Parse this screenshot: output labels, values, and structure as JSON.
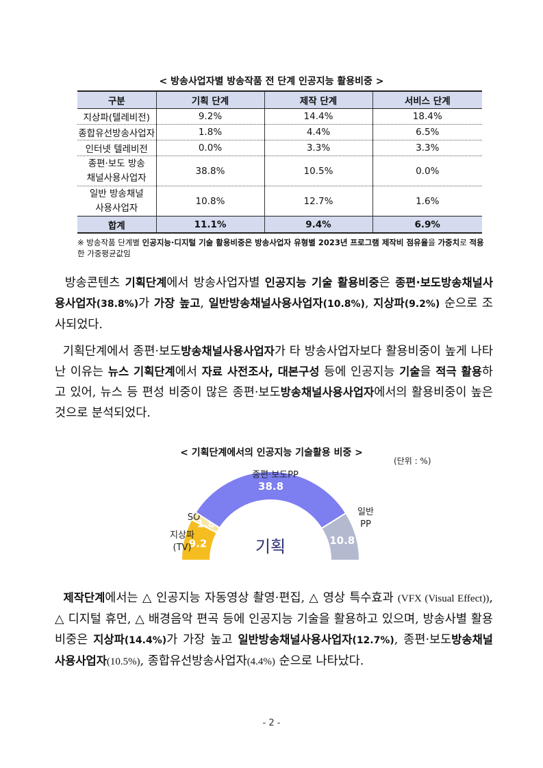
{
  "table": {
    "caption": "< 방송사업자별 방송작품 전 단계 인공지능 활용비중 >",
    "headers": [
      "구분",
      "기획 단계",
      "제작 단계",
      "서비스 단계"
    ],
    "rows": [
      {
        "cat": [
          "지상파(텔레비전)"
        ],
        "plan": "9.2%",
        "prod": "14.4%",
        "serv": "18.4%"
      },
      {
        "cat": [
          "종합유선방송사업자"
        ],
        "plan": "1.8%",
        "prod": "4.4%",
        "serv": "6.5%"
      },
      {
        "cat": [
          "인터넷 텔레비전"
        ],
        "plan": "0.0%",
        "prod": "3.3%",
        "serv": "3.3%"
      },
      {
        "cat": [
          "종편·보도 방송",
          "채널사용사업자"
        ],
        "plan": "38.8%",
        "prod": "10.5%",
        "serv": "0.0%"
      },
      {
        "cat": [
          "일반 방송채널",
          "사용사업자"
        ],
        "plan": "10.8%",
        "prod": "12.7%",
        "serv": "1.6%"
      }
    ],
    "total": {
      "cat": "합계",
      "plan": "11.1%",
      "prod": "9.4%",
      "serv": "6.9%"
    }
  },
  "note": {
    "prefix": "※ 방송작품 단계별 ",
    "bold1": "인공지능·디지털 기술 활용비중은 방송사업자 유형별 2023년 프로그램 제작비 점유율",
    "mid1": "을 ",
    "bold2": "가중치",
    "mid2": "로 ",
    "bold3": "적용",
    "suffix": "한 가중평균값임"
  },
  "para1": {
    "t1": "방송콘텐츠 ",
    "b1": "기획단계",
    "t2": "에서 방송사업자별 ",
    "b2": "인공지능 기술 활용비중",
    "t3": "은 ",
    "b3": "종편·보도방송채널사용사업자",
    "n1": "(38.8%)",
    "t4": "가 ",
    "b4": "가장 높고",
    "t5": ", ",
    "b5": "일반방송채널사용사업자",
    "n2": "(10.8%)",
    "t6": ", ",
    "b6": "지상파",
    "n3": "(9.2%)",
    "t7": " 순으로 조사되었다."
  },
  "para2": {
    "t1": "기획단계에서 종편·보도",
    "b1": "방송채널사용사업자",
    "t2": "가 타 방송사업자보다 활용비중이 높게 나타난 이유는 ",
    "b2": "뉴스 기획단계",
    "t3": "에서 ",
    "b3": "자료 사전조사, 대본구성",
    "t4": " 등에 인공지능 ",
    "b4": "기술",
    "t5": "을 ",
    "b5": "적극 활용",
    "t6": "하고 있어, 뉴스 등 편성 비중이 많은 종편·보도",
    "b6": "방송채널사용사업자",
    "t7": "에서의 활용비중이 높은 것으로 분석되었다."
  },
  "chart_caption": "< 기획단계에서의 인공지능 기술활용 비중 >",
  "chart_unit": "(단위 : %)",
  "chart_data": {
    "type": "pie",
    "title": "< 기획단계에서의 인공지능 기술활용 비중 >",
    "unit": "(단위 : %)",
    "center_label": "기획",
    "slices": [
      {
        "label": [
          "지상파",
          "(TV)"
        ],
        "value": 9.2,
        "value_label": "9.2",
        "color": "#f5bd1f"
      },
      {
        "label": [
          "SO"
        ],
        "value": 1.8,
        "value_label": "1.8",
        "color": "#f8e7a4"
      },
      {
        "label": [
          "종편·보도PP"
        ],
        "value": 38.8,
        "value_label": "38.8",
        "color": "#7d7ef0"
      },
      {
        "label": [
          "일반",
          "PP"
        ],
        "value": 10.8,
        "value_label": "10.8",
        "color": "#b3b9cf"
      }
    ]
  },
  "para3": {
    "b1": "제작단계",
    "t1": "에서는 △ 인공지능 자동영상 촬영·편집, △ 영상 특수효과 ",
    "n1": "(VFX (Visual Effect))",
    "t2": ", △ 디지털 휴먼, △ 배경음악 편곡 등에 인공지능 기술을 활용하고 있으며, 방송사별 활용비중은 ",
    "b2": "지상파",
    "n2": "(14.4%)",
    "t3": "가 가장 높고 ",
    "b3": "일반방송채널사용사업자",
    "n3": "(12.7%)",
    "t4": ", 종편·보도",
    "b4": "방송채널사용사업자",
    "n4": "(10.5%)",
    "t5": ", 종합유선방송사업자",
    "n5": "(4.4%)",
    "t6": " 순으로 나타났다."
  },
  "page_number": "- 2 -"
}
